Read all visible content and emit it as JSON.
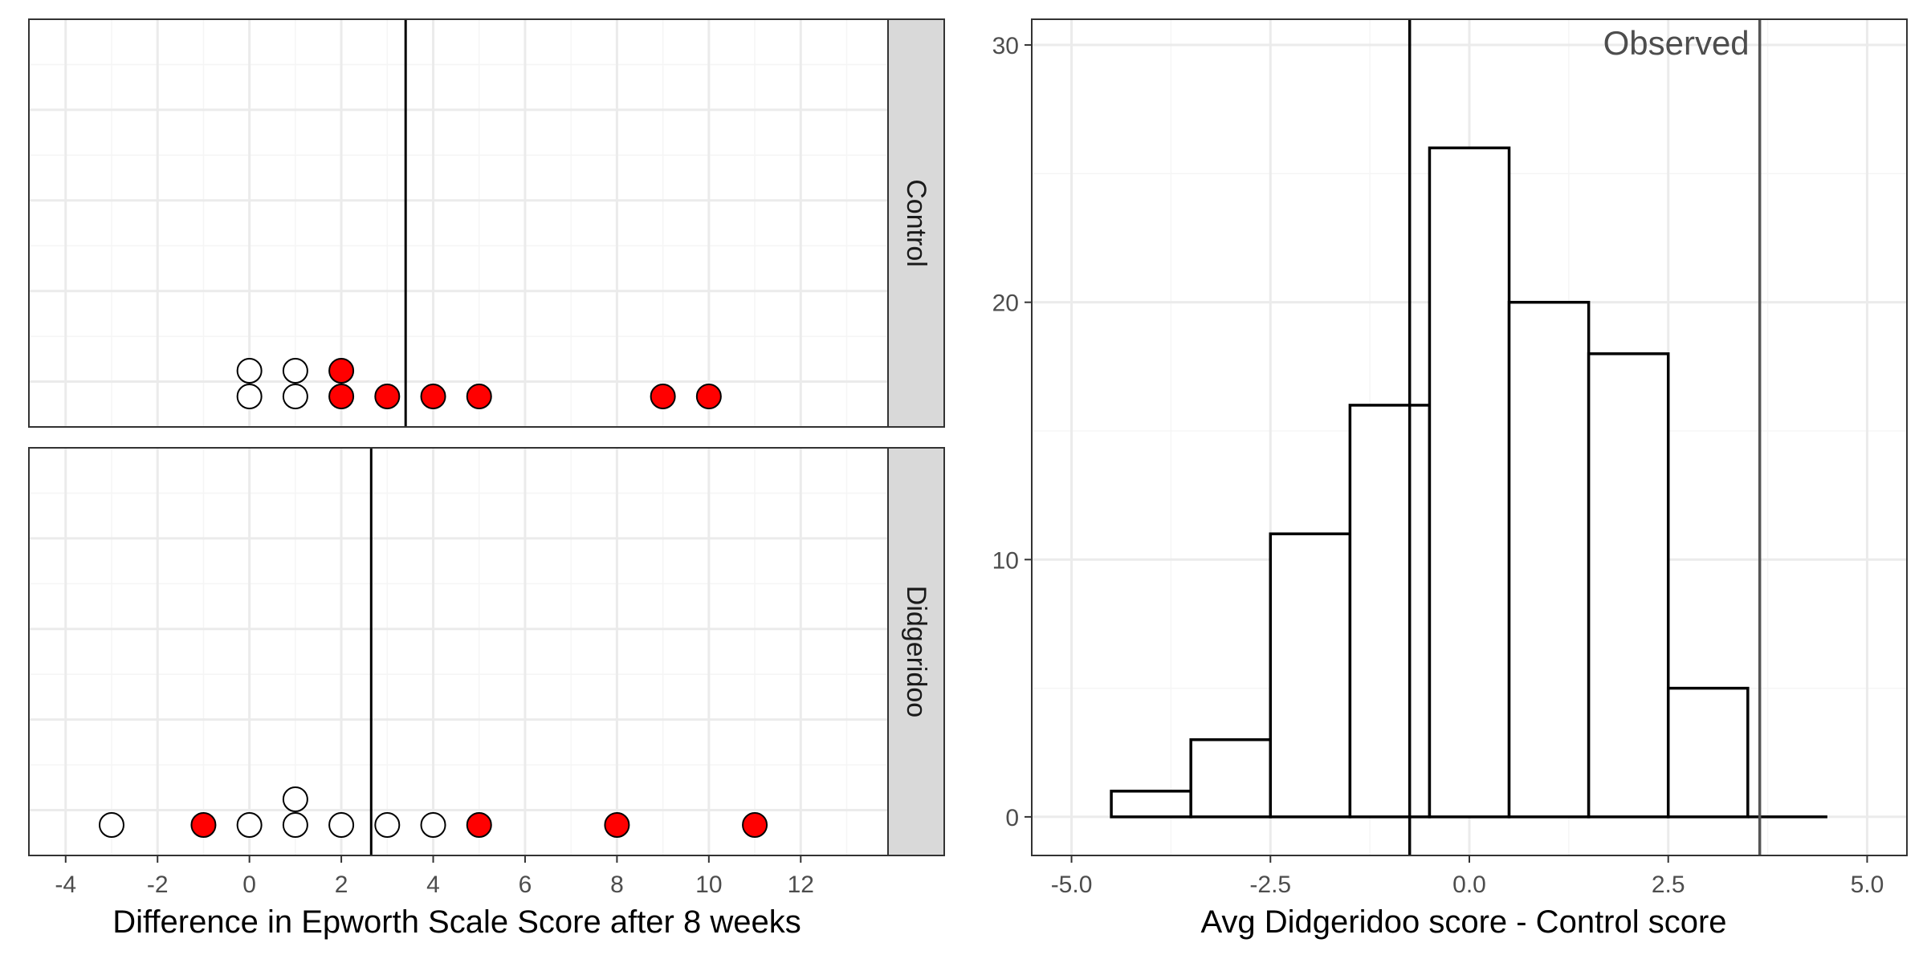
{
  "colors": {
    "selected_fill": "#ff0000",
    "unselected_fill": "#ffffff",
    "point_stroke": "#000000",
    "grid_major": "#ebebeb",
    "grid_minor": "#f5f5f5",
    "strip_fill": "#d9d9d9",
    "histogram_fill": "#ffffff",
    "observed_line": "#555555",
    "tick_text": "#4d4d4d",
    "axis_title": "#000000"
  },
  "chart_data": [
    {
      "type": "scatter",
      "subtype": "faceted dot plot",
      "xlabel": "Difference in Epworth Scale Score after 8 weeks",
      "xlim": [
        -4.8,
        13.9
      ],
      "x_ticks": [
        -4,
        -2,
        0,
        2,
        4,
        6,
        8,
        10,
        12
      ],
      "x_tick_labels": [
        "-4",
        "-2",
        "0",
        "2",
        "4",
        "6",
        "8",
        "10",
        "12"
      ],
      "grid": true,
      "facets": [
        {
          "label": "Control",
          "mean_line_x": 3.4,
          "points": [
            {
              "x": 0,
              "stack": 1,
              "selected": false
            },
            {
              "x": 0,
              "stack": 2,
              "selected": false
            },
            {
              "x": 1,
              "stack": 1,
              "selected": false
            },
            {
              "x": 1,
              "stack": 2,
              "selected": false
            },
            {
              "x": 2,
              "stack": 1,
              "selected": true
            },
            {
              "x": 2,
              "stack": 2,
              "selected": true
            },
            {
              "x": 3,
              "stack": 1,
              "selected": true
            },
            {
              "x": 4,
              "stack": 1,
              "selected": true
            },
            {
              "x": 5,
              "stack": 1,
              "selected": true
            },
            {
              "x": 9,
              "stack": 1,
              "selected": true
            },
            {
              "x": 10,
              "stack": 1,
              "selected": true
            }
          ]
        },
        {
          "label": "Didgeridoo",
          "mean_line_x": 2.65,
          "points": [
            {
              "x": -3,
              "stack": 1,
              "selected": false
            },
            {
              "x": -1,
              "stack": 1,
              "selected": true
            },
            {
              "x": 0,
              "stack": 1,
              "selected": false
            },
            {
              "x": 1,
              "stack": 1,
              "selected": false
            },
            {
              "x": 1,
              "stack": 2,
              "selected": false
            },
            {
              "x": 2,
              "stack": 1,
              "selected": false
            },
            {
              "x": 3,
              "stack": 1,
              "selected": false
            },
            {
              "x": 4,
              "stack": 1,
              "selected": false
            },
            {
              "x": 5,
              "stack": 1,
              "selected": true
            },
            {
              "x": 8,
              "stack": 1,
              "selected": true
            },
            {
              "x": 11,
              "stack": 1,
              "selected": true
            }
          ]
        }
      ]
    },
    {
      "type": "bar",
      "subtype": "histogram",
      "xlabel": "Avg Didgeridoo score - Control score",
      "xlim": [
        -5.5,
        5.5
      ],
      "ylim": [
        -1.5,
        31
      ],
      "x_ticks": [
        -5,
        -2.5,
        0,
        2.5,
        5
      ],
      "x_tick_labels": [
        "-5.0",
        "-2.5",
        "0.0",
        "2.5",
        "5.0"
      ],
      "y_ticks": [
        0,
        10,
        20,
        30
      ],
      "y_tick_labels": [
        "0",
        "10",
        "20",
        "30"
      ],
      "grid": true,
      "bins": [
        {
          "x0": -4.5,
          "x1": -3.5,
          "count": 1
        },
        {
          "x0": -3.5,
          "x1": -2.5,
          "count": 3
        },
        {
          "x0": -2.5,
          "x1": -1.5,
          "count": 11
        },
        {
          "x0": -1.5,
          "x1": -0.5,
          "count": 16
        },
        {
          "x0": -0.5,
          "x1": 0.5,
          "count": 26
        },
        {
          "x0": 0.5,
          "x1": 1.5,
          "count": 20
        },
        {
          "x0": 1.5,
          "x1": 2.5,
          "count": 18
        },
        {
          "x0": 2.5,
          "x1": 3.5,
          "count": 5
        },
        {
          "x0": 3.5,
          "x1": 4.5,
          "count": 0
        }
      ],
      "reference_lines": [
        {
          "x": -0.75,
          "color": "#000000"
        },
        {
          "x": 3.65,
          "color": "#555555"
        }
      ],
      "annotation": {
        "text": "Observed",
        "x": 2.6,
        "y": 30
      }
    }
  ]
}
